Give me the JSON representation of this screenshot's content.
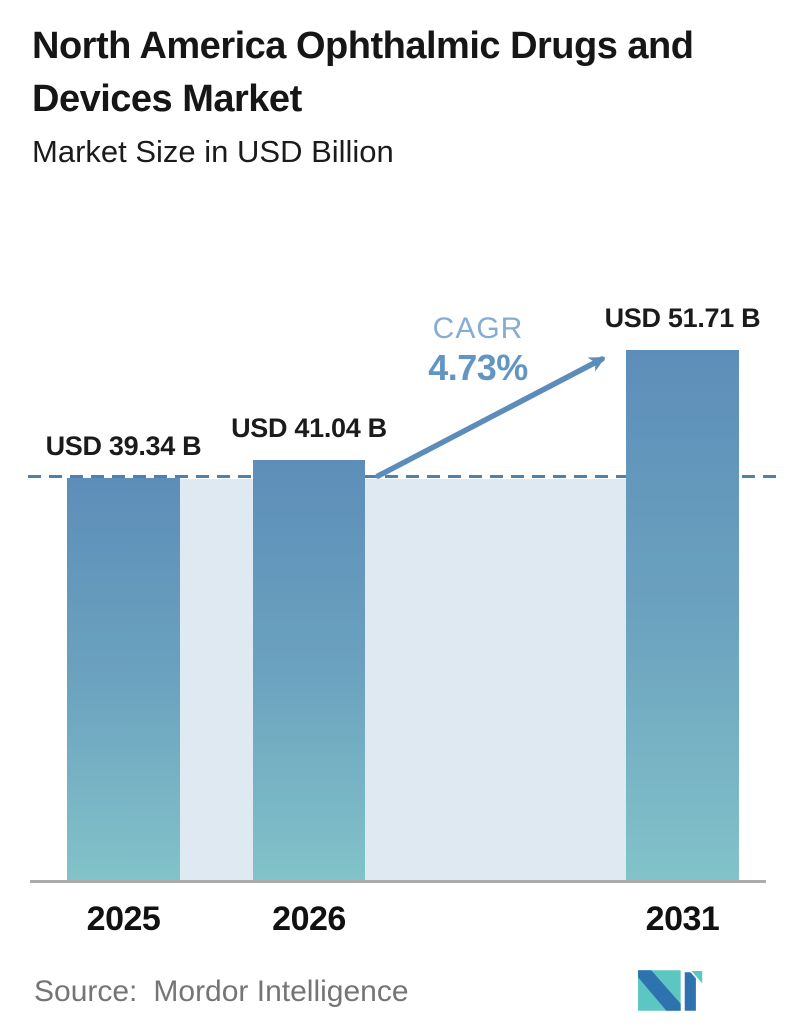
{
  "header": {
    "title_line1": "North America Ophthalmic Drugs and",
    "title_line2": "Devices Market",
    "subtitle": "Market Size in USD Billion"
  },
  "chart_data": {
    "type": "bar",
    "title": "North America Ophthalmic Drugs and Devices Market",
    "subtitle": "Market Size in USD Billion",
    "categories": [
      "2025",
      "2026",
      "2031"
    ],
    "values": [
      39.34,
      41.04,
      51.71
    ],
    "value_labels": [
      "USD 39.34 B",
      "USD 41.04 B",
      "USD 51.71 B"
    ],
    "ylabel": "Market Size in USD Billion",
    "ylim": [
      0,
      55
    ],
    "grid": "off",
    "baseline": {
      "value": 39.34,
      "style": "dashed-horizontal"
    },
    "annotations": {
      "cagr_label": "CAGR",
      "cagr_value": "4.73%",
      "arrow": "from 2026 bar to 2031 bar"
    },
    "colors": {
      "bar_top": "#5d8eb9",
      "bar_mid": "#6ca3bf",
      "bar_bottom": "#82c3c9",
      "band": "#dfe9f2",
      "dashed_line": "#4d81af",
      "arrow": "#5b8cba",
      "cagr_label_text": "#85add2",
      "cagr_value_text": "#6196c3",
      "label_text": "#1b1b1b",
      "axis_line": "#ababab",
      "source_text": "#757575",
      "logo_blue": "#2e73b0",
      "logo_teal": "#5bc6c2"
    }
  },
  "footer": {
    "source_label": "Source:",
    "source_name": "Mordor Intelligence",
    "logo": "mordor-intelligence-logo"
  }
}
